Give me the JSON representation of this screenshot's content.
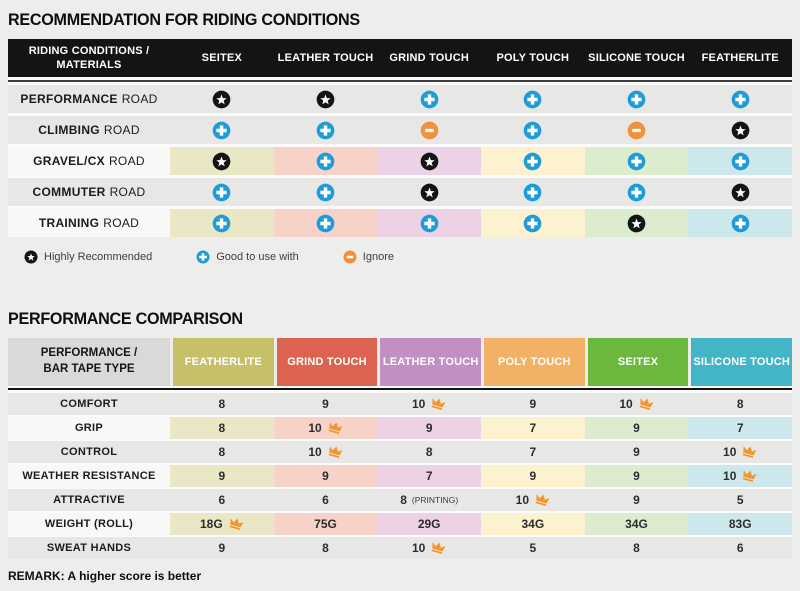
{
  "icons": {
    "star_color": "#141414",
    "plus_color": "#1d9cd8",
    "minus_color": "#f0913c",
    "crown_color": "#f2952d"
  },
  "section1": {
    "title": "RECOMMENDATION FOR RIDING CONDITIONS",
    "table": {
      "header_line1": "RIDING CONDITIONS /",
      "header_line2": "MATERIALS",
      "columns": [
        "SEITEX",
        "LEATHER TOUCH",
        "GRIND TOUCH",
        "POLY TOUCH",
        "SILICONE TOUCH",
        "FEATHERLITE"
      ],
      "column_tints": [
        "#eae7c5",
        "#f6d2c9",
        "#ecd2e6",
        "#fcf2cf",
        "#dcedcf",
        "#cde8ec"
      ],
      "rows": [
        {
          "label_strong": "PERFORMANCE",
          "label_rest": "ROAD",
          "tinted": false,
          "cells": [
            "star",
            "star",
            "plus",
            "plus",
            "plus",
            "plus"
          ]
        },
        {
          "label_strong": "CLIMBING",
          "label_rest": "ROAD",
          "tinted": false,
          "cells": [
            "plus",
            "plus",
            "minus",
            "plus",
            "minus",
            "star"
          ]
        },
        {
          "label_strong": "GRAVEL/CX",
          "label_rest": "ROAD",
          "tinted": true,
          "cells": [
            "star",
            "plus",
            "star",
            "plus",
            "plus",
            "plus"
          ]
        },
        {
          "label_strong": "COMMUTER",
          "label_rest": "ROAD",
          "tinted": false,
          "cells": [
            "plus",
            "plus",
            "star",
            "plus",
            "plus",
            "star"
          ]
        },
        {
          "label_strong": "TRAINING",
          "label_rest": "ROAD",
          "tinted": true,
          "cells": [
            "plus",
            "plus",
            "plus",
            "plus",
            "star",
            "plus"
          ]
        }
      ]
    },
    "legend": [
      {
        "icon": "star",
        "label": "Highly Recommended"
      },
      {
        "icon": "plus",
        "label": "Good to use with"
      },
      {
        "icon": "minus",
        "label": "Ignore"
      }
    ]
  },
  "section2": {
    "title": "PERFORMANCE COMPARISON",
    "table": {
      "header_line1": "PERFORMANCE /",
      "header_line2": "BAR TAPE TYPE",
      "columns": [
        {
          "label": "FEATHERLITE",
          "color": "#c6c168"
        },
        {
          "label": "GRIND TOUCH",
          "color": "#dd6351"
        },
        {
          "label": "LEATHER TOUCH",
          "color": "#c18fc3"
        },
        {
          "label": "POLY TOUCH",
          "color": "#f3b166"
        },
        {
          "label": "SEITEX",
          "color": "#6cb83f"
        },
        {
          "label": "SILICONE TOUCH",
          "color": "#42b6c6"
        }
      ],
      "column_tints": [
        "#eae7c5",
        "#f6d2c9",
        "#ecd2e6",
        "#fcf2cf",
        "#dcedcf",
        "#cde8ec"
      ],
      "rows": [
        {
          "label": "COMFORT",
          "tinted": false,
          "cells": [
            {
              "value": "8"
            },
            {
              "value": "9"
            },
            {
              "value": "10",
              "crown": true
            },
            {
              "value": "9"
            },
            {
              "value": "10",
              "crown": true
            },
            {
              "value": "8"
            }
          ]
        },
        {
          "label": "GRIP",
          "tinted": true,
          "cells": [
            {
              "value": "8"
            },
            {
              "value": "10",
              "crown": true
            },
            {
              "value": "9"
            },
            {
              "value": "7"
            },
            {
              "value": "9"
            },
            {
              "value": "7"
            }
          ]
        },
        {
          "label": "CONTROL",
          "tinted": false,
          "cells": [
            {
              "value": "8"
            },
            {
              "value": "10",
              "crown": true
            },
            {
              "value": "8"
            },
            {
              "value": "7"
            },
            {
              "value": "9"
            },
            {
              "value": "10",
              "crown": true
            }
          ]
        },
        {
          "label": "WEATHER RESISTANCE",
          "tinted": true,
          "cells": [
            {
              "value": "9"
            },
            {
              "value": "9"
            },
            {
              "value": "7"
            },
            {
              "value": "9"
            },
            {
              "value": "9"
            },
            {
              "value": "10",
              "crown": true
            }
          ]
        },
        {
          "label": "ATTRACTIVE",
          "tinted": false,
          "cells": [
            {
              "value": "6"
            },
            {
              "value": "6"
            },
            {
              "value": "8",
              "note": "(PRINTING)"
            },
            {
              "value": "10",
              "crown": true
            },
            {
              "value": "9"
            },
            {
              "value": "5"
            }
          ]
        },
        {
          "label": "WEIGHT (ROLL)",
          "tinted": true,
          "cells": [
            {
              "value": "18G",
              "crown": true
            },
            {
              "value": "75G"
            },
            {
              "value": "29G"
            },
            {
              "value": "34G"
            },
            {
              "value": "34G"
            },
            {
              "value": "83G"
            }
          ]
        },
        {
          "label": "SWEAT HANDS",
          "tinted": false,
          "cells": [
            {
              "value": "9"
            },
            {
              "value": "8"
            },
            {
              "value": "10",
              "crown": true
            },
            {
              "value": "5"
            },
            {
              "value": "8"
            },
            {
              "value": "6"
            }
          ]
        }
      ]
    },
    "remark": "REMARK: A higher score is better"
  }
}
